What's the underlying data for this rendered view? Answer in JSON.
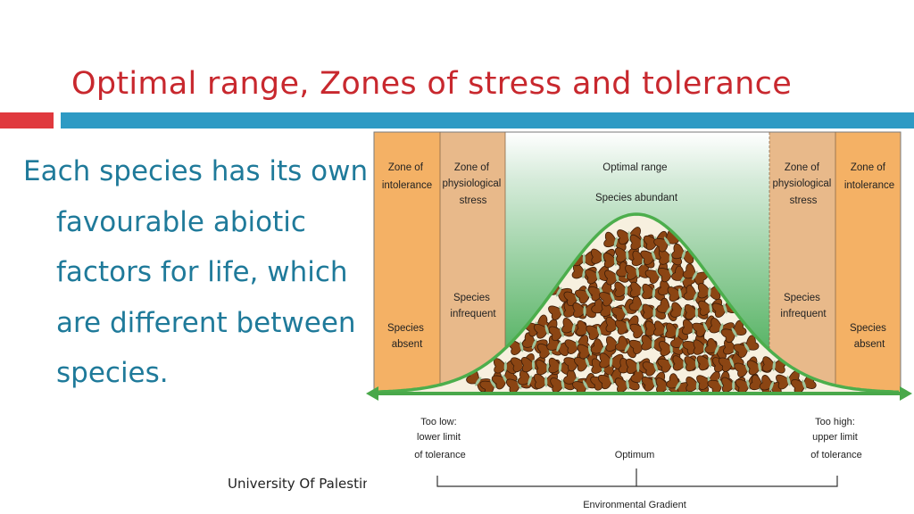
{
  "slide": {
    "title": "Optimal range, Zones of stress and tolerance",
    "body": "Each species has its own favourable abiotic factors for life, which are different between species.",
    "footer": "University Of Palestine"
  },
  "diagram": {
    "zones": {
      "intolerance_left": [
        "Zone of",
        "intolerance"
      ],
      "stress_left": [
        "Zone of",
        "physiological",
        "stress"
      ],
      "optimal": [
        "Optimal range",
        "Species abundant"
      ],
      "stress_right": [
        "Zone of",
        "physiological",
        "stress"
      ],
      "intolerance_right": [
        "Zone of",
        "intolerance"
      ]
    },
    "abundance": {
      "absent_left": [
        "Species",
        "absent"
      ],
      "infrequent_left": [
        "Species",
        "infrequent"
      ],
      "infrequent_right": [
        "Species",
        "infrequent"
      ],
      "absent_right": [
        "Species",
        "absent"
      ]
    },
    "limits": {
      "low": [
        "Too low:",
        "lower limit",
        "of tolerance"
      ],
      "optimum": "Optimum",
      "high": [
        "Too high:",
        "upper limit",
        "of tolerance"
      ]
    },
    "gradient_label": "Environmental Gradient",
    "colors": {
      "intolerance": "#f4b165",
      "stress": "#e8b98a",
      "optimal_top": "#cfe6d4",
      "optimal_bottom": "#3aa74a",
      "curve_fill": "#f7f0df",
      "curve_edge": "#4cae4c",
      "axis": "#49a84a",
      "butterfly": "#8b4513"
    }
  }
}
